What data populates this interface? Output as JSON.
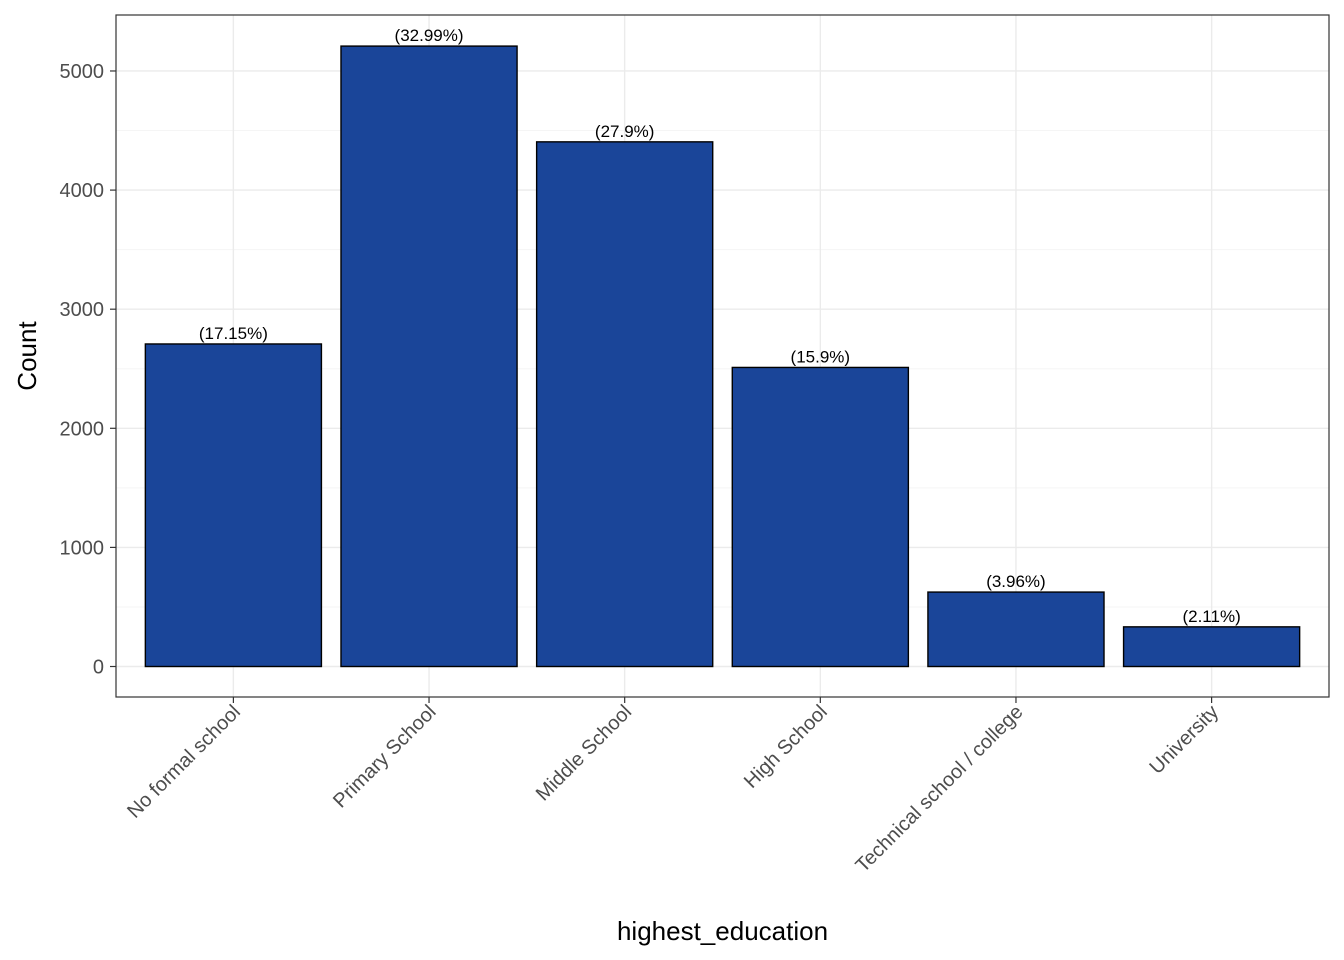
{
  "chart_data": {
    "type": "bar",
    "categories": [
      "No formal school",
      "Primary School",
      "Middle School",
      "High School",
      "Technical school / college",
      "University"
    ],
    "values": [
      2708,
      5209,
      4405,
      2511,
      625,
      333
    ],
    "data_labels": [
      "(17.15%)",
      "(32.99%)",
      "(27.9%)",
      "(15.9%)",
      "(3.96%)",
      "(2.11%)"
    ],
    "xlabel": "highest_education",
    "ylabel": "Count",
    "ylim": [
      -256,
      5470
    ],
    "yticks": [
      0,
      1000,
      2000,
      3000,
      4000,
      5000
    ],
    "ytick_labels": [
      "0",
      "1000",
      "2000",
      "3000",
      "4000",
      "5000"
    ],
    "grid": true,
    "colors": {
      "bar_fill": "#1A4599",
      "bar_outline": "#000000",
      "grid_major": "#EBEBEB",
      "grid_minor": "#F5F5F5",
      "panel_border": "#333333"
    }
  }
}
